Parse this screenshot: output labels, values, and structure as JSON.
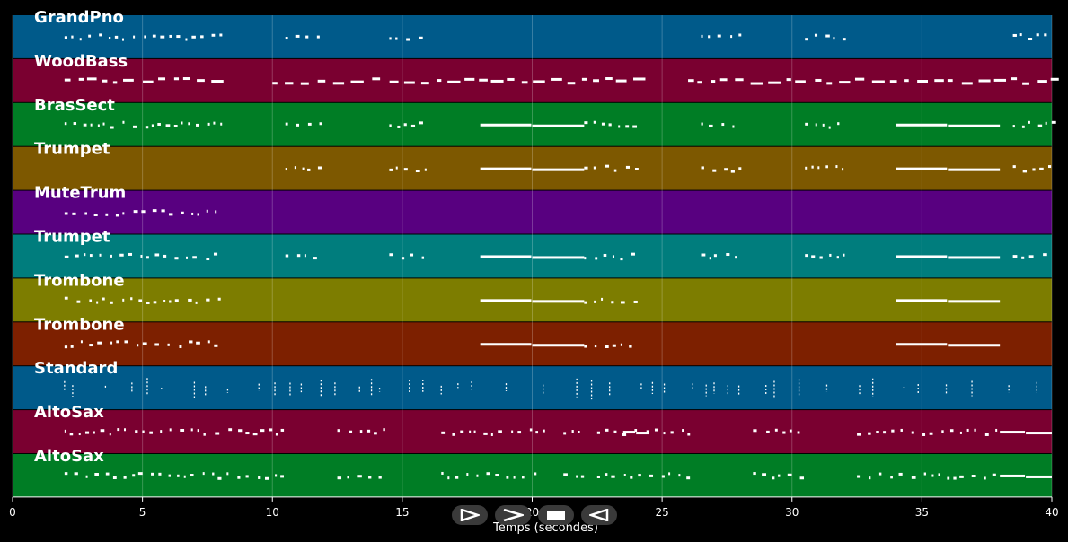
{
  "xaxis": {
    "label": "Temps (secondes)",
    "ticks": [
      "0",
      "5",
      "10",
      "15",
      "20",
      "25",
      "30",
      "35",
      "40"
    ],
    "range": [
      0,
      40
    ]
  },
  "tracks": [
    {
      "name": "GrandPno",
      "color": "#005a8a"
    },
    {
      "name": "WoodBass",
      "color": "#7a0030"
    },
    {
      "name": "BrasSect",
      "color": "#007d25"
    },
    {
      "name": "Trumpet",
      "color": "#7d5800"
    },
    {
      "name": "MuteTrum",
      "color": "#580080"
    },
    {
      "name": "Trumpet",
      "color": "#007d7d"
    },
    {
      "name": "Trombone",
      "color": "#7d7d00"
    },
    {
      "name": "Trombone",
      "color": "#7d2000"
    },
    {
      "name": "Standard",
      "color": "#005a8a"
    },
    {
      "name": "AltoSax",
      "color": "#7a0030"
    },
    {
      "name": "AltoSax",
      "color": "#007d25"
    }
  ],
  "controls": {
    "play": "play-icon",
    "forward": "forward-icon",
    "stop": "stop-icon",
    "rewind": "rewind-icon"
  }
}
